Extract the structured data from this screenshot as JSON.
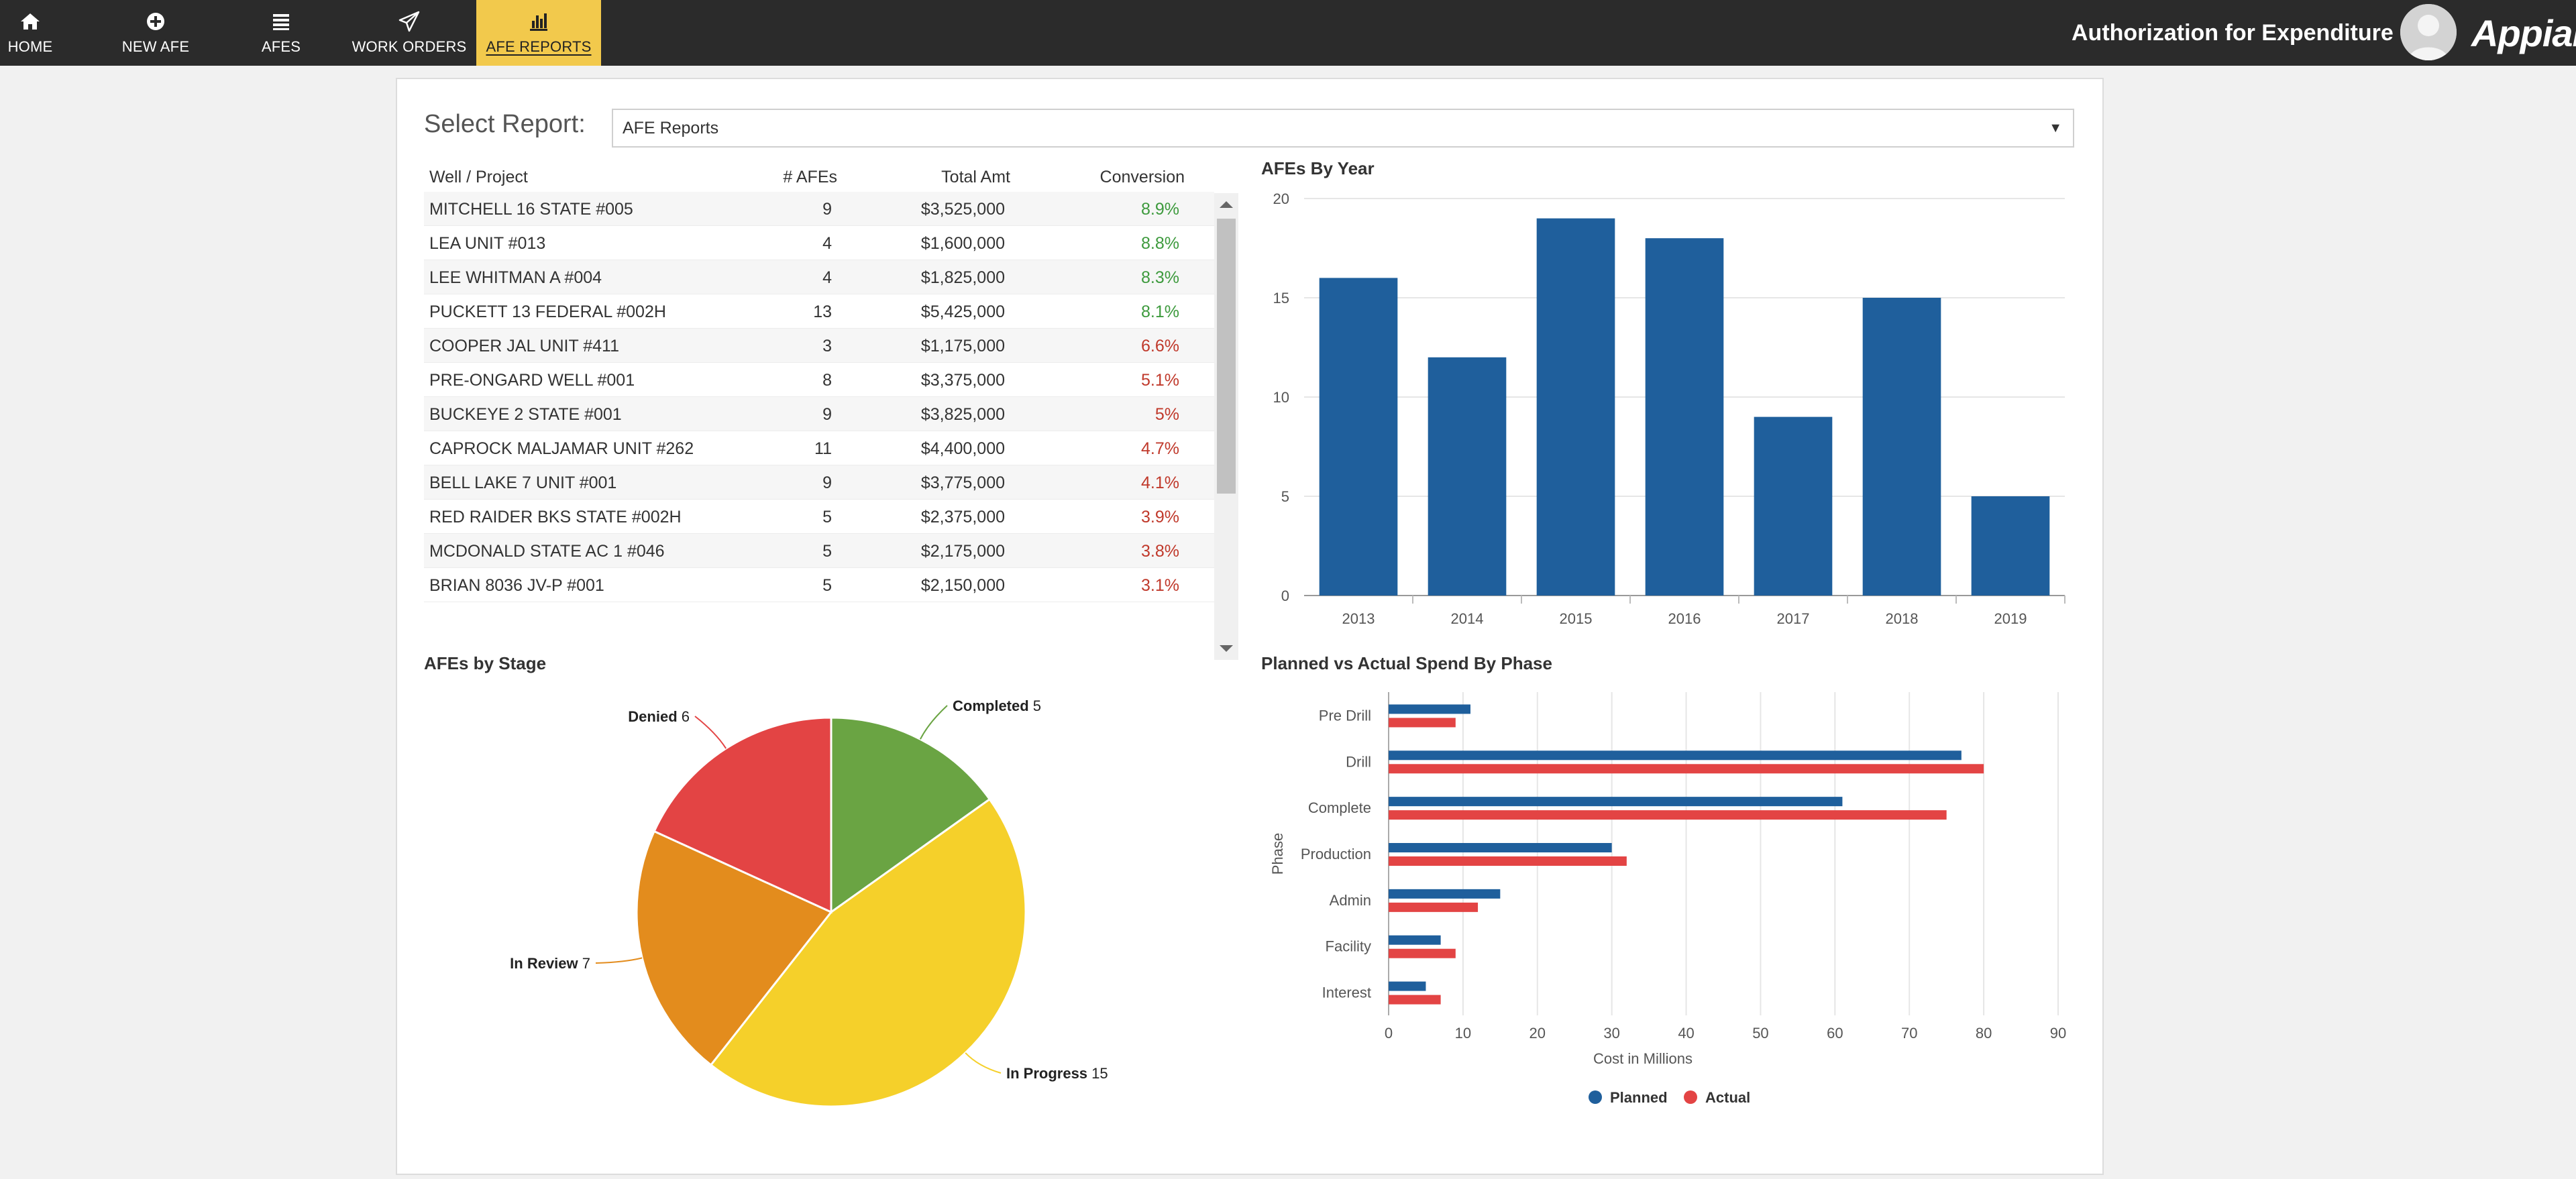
{
  "nav": {
    "items": [
      {
        "label": "HOME",
        "icon": "home-icon"
      },
      {
        "label": "NEW AFE",
        "icon": "plus-circle-icon"
      },
      {
        "label": "AFES",
        "icon": "list-icon"
      },
      {
        "label": "WORK ORDERS",
        "icon": "paper-plane-icon"
      },
      {
        "label": "AFE REPORTS",
        "icon": "bar-chart-icon",
        "active": true
      }
    ],
    "app_title": "Authorization for Expenditure",
    "brand": "Appian"
  },
  "report_select": {
    "label": "Select Report:",
    "value": "AFE Reports"
  },
  "table": {
    "headers": {
      "name": "Well / Project",
      "count": "# AFEs",
      "total": "Total Amt",
      "conversion": "Conversion"
    },
    "rows": [
      {
        "name": "MITCHELL 16 STATE #005",
        "count": "9",
        "total": "$3,525,000",
        "conversion": "8.9%",
        "trend": "positive"
      },
      {
        "name": "LEA UNIT #013",
        "count": "4",
        "total": "$1,600,000",
        "conversion": "8.8%",
        "trend": "positive"
      },
      {
        "name": "LEE WHITMAN A #004",
        "count": "4",
        "total": "$1,825,000",
        "conversion": "8.3%",
        "trend": "positive"
      },
      {
        "name": "PUCKETT 13 FEDERAL #002H",
        "count": "13",
        "total": "$5,425,000",
        "conversion": "8.1%",
        "trend": "positive"
      },
      {
        "name": "COOPER JAL UNIT #411",
        "count": "3",
        "total": "$1,175,000",
        "conversion": "6.6%",
        "trend": "negative"
      },
      {
        "name": "PRE-ONGARD WELL #001",
        "count": "8",
        "total": "$3,375,000",
        "conversion": "5.1%",
        "trend": "negative"
      },
      {
        "name": "BUCKEYE 2 STATE #001",
        "count": "9",
        "total": "$3,825,000",
        "conversion": "5%",
        "trend": "negative"
      },
      {
        "name": "CAPROCK MALJAMAR UNIT #262",
        "count": "11",
        "total": "$4,400,000",
        "conversion": "4.7%",
        "trend": "negative"
      },
      {
        "name": "BELL LAKE 7 UNIT #001",
        "count": "9",
        "total": "$3,775,000",
        "conversion": "4.1%",
        "trend": "negative"
      },
      {
        "name": "RED RAIDER BKS STATE #002H",
        "count": "5",
        "total": "$2,375,000",
        "conversion": "3.9%",
        "trend": "negative"
      },
      {
        "name": "MCDONALD STATE AC 1 #046",
        "count": "5",
        "total": "$2,175,000",
        "conversion": "3.8%",
        "trend": "negative"
      },
      {
        "name": "BRIAN 8036 JV-P #001",
        "count": "5",
        "total": "$2,150,000",
        "conversion": "3.1%",
        "trend": "negative"
      }
    ]
  },
  "chart_data": [
    {
      "type": "bar",
      "title": "AFEs By Year",
      "categories": [
        "2013",
        "2014",
        "2015",
        "2016",
        "2017",
        "2018",
        "2019"
      ],
      "values": [
        16,
        12,
        19,
        18,
        9,
        15,
        5
      ],
      "ylim": [
        0,
        20
      ],
      "yticks": [
        0,
        5,
        10,
        15,
        20
      ],
      "color": "#1f5f9c",
      "grid": true
    },
    {
      "type": "pie",
      "title": "AFEs by Stage",
      "slices": [
        {
          "label": "Completed",
          "value": 5,
          "color": "#6aa443"
        },
        {
          "label": "In Progress",
          "value": 15,
          "color": "#f5d02a"
        },
        {
          "label": "In Review",
          "value": 7,
          "color": "#e38c1d"
        },
        {
          "label": "Denied",
          "value": 6,
          "color": "#e34444"
        }
      ]
    },
    {
      "type": "bar",
      "orientation": "horizontal",
      "title": "Planned vs Actual Spend By Phase",
      "categories": [
        "Pre Drill",
        "Drill",
        "Complete",
        "Production",
        "Admin",
        "Facility",
        "Interest"
      ],
      "series": [
        {
          "name": "Planned",
          "values": [
            11,
            77,
            61,
            30,
            15,
            7,
            5
          ],
          "color": "#1f5f9c"
        },
        {
          "name": "Actual",
          "values": [
            9,
            80,
            75,
            32,
            12,
            9,
            7
          ],
          "color": "#e34444"
        }
      ],
      "xlim": [
        0,
        90
      ],
      "xticks": [
        0,
        10,
        20,
        30,
        40,
        50,
        60,
        70,
        80,
        90
      ],
      "xlabel": "Cost in Millions",
      "ylabel": "Phase",
      "legend": "bottom",
      "grid": true
    }
  ]
}
